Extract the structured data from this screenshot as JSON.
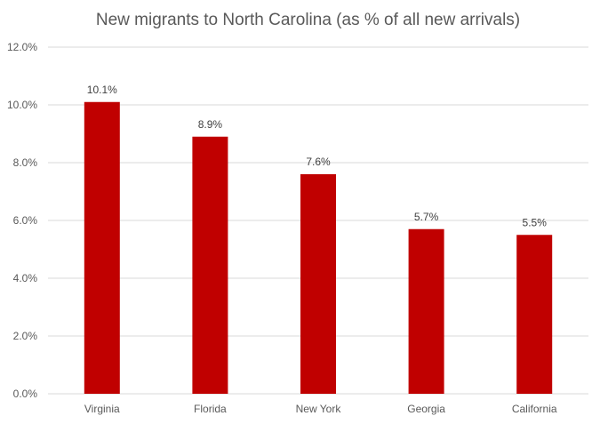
{
  "chart_data": {
    "type": "bar",
    "title": "New migrants to North Carolina (as % of all new arrivals)",
    "categories": [
      "Virginia",
      "Florida",
      "New York",
      "Georgia",
      "California"
    ],
    "values": [
      10.1,
      8.9,
      7.6,
      5.7,
      5.5
    ],
    "data_labels": [
      "10.1%",
      "8.9%",
      "7.6%",
      "5.7%",
      "5.5%"
    ],
    "ylim": [
      0,
      12
    ],
    "yticks": [
      0,
      2,
      4,
      6,
      8,
      10,
      12
    ],
    "ytick_labels": [
      "0.0%",
      "2.0%",
      "4.0%",
      "6.0%",
      "8.0%",
      "10.0%",
      "12.0%"
    ],
    "xlabel": "",
    "ylabel": "",
    "grid": true,
    "legend": "none",
    "bar_color": "#c00000"
  }
}
